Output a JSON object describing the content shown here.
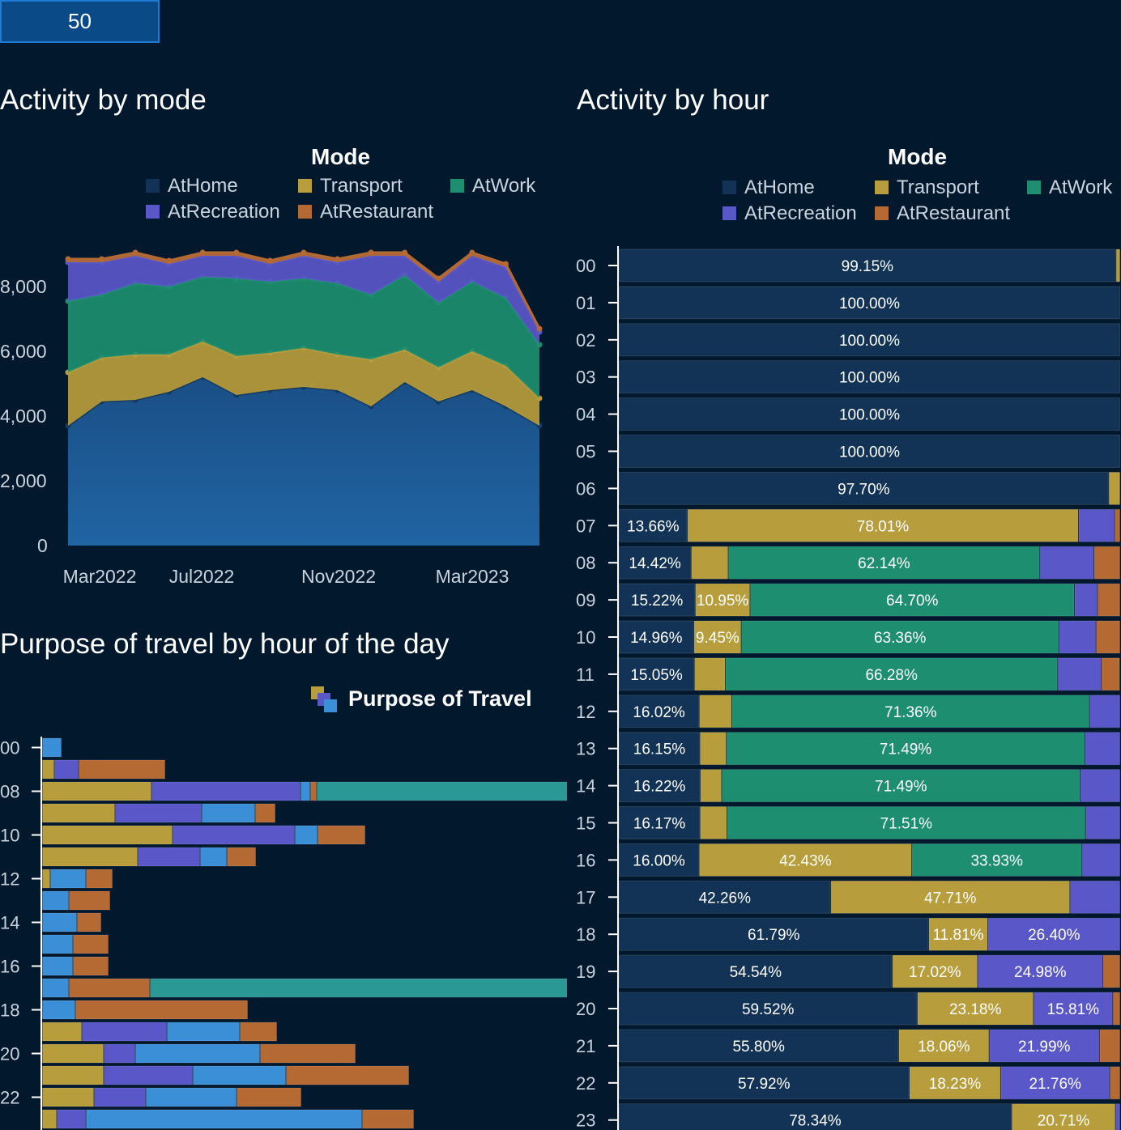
{
  "input": {
    "value": "50"
  },
  "colors": {
    "AtHome": "#123355",
    "Transport": "#b79d3c",
    "AtWork": "#1d8f70",
    "AtRecreation": "#5a57c9",
    "AtRestaurant": "#b56a34",
    "Blue": "#3a8fd6",
    "Teal": "#2a9894"
  },
  "mode_section": {
    "title": "Activity by mode",
    "legend_title": "Mode",
    "legend": [
      "AtHome",
      "Transport",
      "AtWork",
      "AtRecreation",
      "AtRestaurant"
    ]
  },
  "hour_section": {
    "title": "Activity by hour",
    "legend_title": "Mode",
    "legend": [
      "AtHome",
      "Transport",
      "AtWork",
      "AtRecreation",
      "AtRestaurant"
    ]
  },
  "purpose_section": {
    "title": "Purpose of travel by hour of the day",
    "legend_title": "Purpose of Travel"
  },
  "chart_data": [
    {
      "type": "area",
      "stacked": true,
      "title": "Activity by mode",
      "x_ticks": [
        "Mar2022",
        "Jul2022",
        "Nov2022",
        "Mar2023"
      ],
      "y_ticks": [
        "0",
        "2,000",
        "4,000",
        "6,000",
        "8,000"
      ],
      "ylim": [
        0,
        9000
      ],
      "series": [
        {
          "name": "AtHome",
          "values": [
            3700,
            4450,
            4500,
            4750,
            5200,
            4650,
            4800,
            4900,
            4800,
            4300,
            5050,
            4450,
            4800,
            4300,
            3700
          ]
        },
        {
          "name": "Transport",
          "values": [
            1650,
            1350,
            1400,
            1150,
            1100,
            1200,
            1150,
            1200,
            1100,
            1450,
            1000,
            1050,
            1200,
            1250,
            850
          ]
        },
        {
          "name": "AtWork",
          "values": [
            2200,
            1950,
            2200,
            2100,
            2000,
            2400,
            2200,
            2150,
            2200,
            2000,
            2300,
            2000,
            2150,
            2100,
            1650
          ]
        },
        {
          "name": "AtRecreation",
          "values": [
            1200,
            1000,
            850,
            700,
            650,
            700,
            550,
            700,
            650,
            1200,
            600,
            650,
            800,
            950,
            400
          ]
        },
        {
          "name": "AtRestaurant",
          "values": [
            100,
            100,
            100,
            100,
            100,
            100,
            100,
            100,
            100,
            100,
            100,
            100,
            100,
            100,
            100
          ]
        }
      ]
    },
    {
      "type": "bar",
      "stacked": true,
      "orientation": "horizontal",
      "title": "Activity by hour",
      "categories": [
        "00",
        "01",
        "02",
        "03",
        "04",
        "05",
        "06",
        "07",
        "08",
        "09",
        "10",
        "11",
        "12",
        "13",
        "14",
        "15",
        "16",
        "17",
        "18",
        "19",
        "20",
        "21",
        "22",
        "23"
      ],
      "series": [
        {
          "name": "AtHome",
          "values": [
            99.15,
            100,
            100,
            100,
            100,
            100,
            97.7,
            13.66,
            14.42,
            15.22,
            14.96,
            15.05,
            16.02,
            16.15,
            16.22,
            16.17,
            16.0,
            42.26,
            61.79,
            54.54,
            59.52,
            55.8,
            57.92,
            78.34
          ]
        },
        {
          "name": "Transport",
          "values": [
            0.85,
            0,
            0,
            0,
            0,
            0,
            2.3,
            78.01,
            7.4,
            10.95,
            9.45,
            6.2,
            6.5,
            5.3,
            4.3,
            5.4,
            42.43,
            47.71,
            11.81,
            17.02,
            23.18,
            18.06,
            18.23,
            20.71
          ]
        },
        {
          "name": "AtWork",
          "values": [
            0,
            0,
            0,
            0,
            0,
            0,
            0,
            0,
            62.14,
            64.7,
            63.36,
            66.28,
            71.36,
            71.49,
            71.49,
            71.51,
            33.93,
            0,
            0,
            0,
            0,
            0,
            0,
            0
          ]
        },
        {
          "name": "AtRecreation",
          "values": [
            0,
            0,
            0,
            0,
            0,
            0,
            0,
            7.2,
            10.8,
            4.6,
            7.4,
            8.7,
            6.12,
            7.06,
            7.99,
            6.92,
            7.64,
            10.03,
            26.4,
            24.98,
            15.81,
            21.99,
            21.76,
            0.95
          ]
        },
        {
          "name": "AtRestaurant",
          "values": [
            0,
            0,
            0,
            0,
            0,
            0,
            0,
            1.13,
            5.24,
            4.53,
            4.83,
            3.72,
            0,
            0,
            0,
            0,
            0,
            0,
            0,
            3.46,
            1.49,
            4.15,
            2.09,
            0
          ]
        }
      ],
      "labels": [
        [
          "99.15%"
        ],
        [
          "100.00%"
        ],
        [
          "100.00%"
        ],
        [
          "100.00%"
        ],
        [
          "100.00%"
        ],
        [
          "100.00%"
        ],
        [
          "97.70%"
        ],
        [
          "13.66%",
          "78.01%"
        ],
        [
          "14.42%",
          "62.14%"
        ],
        [
          "15.22%",
          "10.95%",
          "64.70%"
        ],
        [
          "14.96%",
          "9.45%",
          "63.36%"
        ],
        [
          "15.05%",
          "66.28%"
        ],
        [
          "16.02%",
          "71.36%"
        ],
        [
          "16.15%",
          "71.49%"
        ],
        [
          "16.22%",
          "71.49%"
        ],
        [
          "16.17%",
          "71.51%"
        ],
        [
          "16.00%",
          "42.43%",
          "33.93%"
        ],
        [
          "42.26%",
          "47.71%"
        ],
        [
          "61.79%",
          "11.81%",
          "26.40%"
        ],
        [
          "54.54%",
          "17.02%",
          "24.98%"
        ],
        [
          "59.52%",
          "23.18%",
          "15.81%"
        ],
        [
          "55.80%",
          "18.06%",
          "21.99%"
        ],
        [
          "57.92%",
          "18.23%",
          "21.76%"
        ],
        [
          "78.34%",
          "20.71%"
        ]
      ]
    },
    {
      "type": "bar",
      "stacked": true,
      "orientation": "horizontal",
      "title": "Purpose of travel by hour of the day",
      "y_ticks": [
        "00",
        "08",
        "10",
        "12",
        "14",
        "16",
        "18",
        "20",
        "22"
      ],
      "xlim": [
        0,
        1000
      ],
      "rows": [
        {
          "hour": "00",
          "segments": [
            {
              "c": "Blue",
              "v": 24
            }
          ]
        },
        {
          "hour": "07",
          "segments": [
            {
              "c": "Transport",
              "v": 15
            },
            {
              "c": "AtRecreation",
              "v": 30
            },
            {
              "c": "AtRestaurant",
              "v": 107
            }
          ]
        },
        {
          "hour": "08",
          "segments": [
            {
              "c": "Transport",
              "v": 135
            },
            {
              "c": "AtRecreation",
              "v": 184
            },
            {
              "c": "Blue",
              "v": 12
            },
            {
              "c": "AtRestaurant",
              "v": 8
            },
            {
              "c": "Teal",
              "v": 659
            }
          ]
        },
        {
          "hour": "09",
          "segments": [
            {
              "c": "Transport",
              "v": 90
            },
            {
              "c": "AtRecreation",
              "v": 107
            },
            {
              "c": "Blue",
              "v": 66
            },
            {
              "c": "AtRestaurant",
              "v": 25
            }
          ]
        },
        {
          "hour": "10",
          "segments": [
            {
              "c": "Transport",
              "v": 161
            },
            {
              "c": "AtRecreation",
              "v": 151
            },
            {
              "c": "Blue",
              "v": 28
            },
            {
              "c": "AtRestaurant",
              "v": 59
            }
          ]
        },
        {
          "hour": "11",
          "segments": [
            {
              "c": "Transport",
              "v": 118
            },
            {
              "c": "AtRecreation",
              "v": 77
            },
            {
              "c": "Blue",
              "v": 33
            },
            {
              "c": "AtRestaurant",
              "v": 36
            }
          ]
        },
        {
          "hour": "12",
          "segments": [
            {
              "c": "Transport",
              "v": 10
            },
            {
              "c": "Blue",
              "v": 44
            },
            {
              "c": "AtRestaurant",
              "v": 33
            }
          ]
        },
        {
          "hour": "13",
          "segments": [
            {
              "c": "Blue",
              "v": 33
            },
            {
              "c": "AtRestaurant",
              "v": 51
            }
          ]
        },
        {
          "hour": "14",
          "segments": [
            {
              "c": "Blue",
              "v": 43
            },
            {
              "c": "AtRestaurant",
              "v": 30
            }
          ]
        },
        {
          "hour": "15",
          "segments": [
            {
              "c": "Blue",
              "v": 38
            },
            {
              "c": "AtRestaurant",
              "v": 44
            }
          ]
        },
        {
          "hour": "16",
          "segments": [
            {
              "c": "Blue",
              "v": 38
            },
            {
              "c": "AtRestaurant",
              "v": 44
            }
          ]
        },
        {
          "hour": "17",
          "segments": [
            {
              "c": "Blue",
              "v": 33
            },
            {
              "c": "AtRestaurant",
              "v": 100
            },
            {
              "c": "Teal",
              "v": 656
            }
          ]
        },
        {
          "hour": "18",
          "segments": [
            {
              "c": "Blue",
              "v": 41
            },
            {
              "c": "AtRestaurant",
              "v": 213
            }
          ]
        },
        {
          "hour": "19",
          "segments": [
            {
              "c": "Transport",
              "v": 49
            },
            {
              "c": "AtRecreation",
              "v": 105
            },
            {
              "c": "Blue",
              "v": 90
            },
            {
              "c": "AtRestaurant",
              "v": 46
            }
          ]
        },
        {
          "hour": "20",
          "segments": [
            {
              "c": "Transport",
              "v": 76
            },
            {
              "c": "AtRecreation",
              "v": 39
            },
            {
              "c": "Blue",
              "v": 154
            },
            {
              "c": "AtRestaurant",
              "v": 118
            }
          ]
        },
        {
          "hour": "21",
          "segments": [
            {
              "c": "Transport",
              "v": 76
            },
            {
              "c": "AtRecreation",
              "v": 110
            },
            {
              "c": "Blue",
              "v": 115
            },
            {
              "c": "AtRestaurant",
              "v": 152
            }
          ]
        },
        {
          "hour": "22",
          "segments": [
            {
              "c": "Transport",
              "v": 64
            },
            {
              "c": "AtRecreation",
              "v": 64
            },
            {
              "c": "Blue",
              "v": 112
            },
            {
              "c": "AtRestaurant",
              "v": 80
            }
          ]
        },
        {
          "hour": "23",
          "segments": [
            {
              "c": "Transport",
              "v": 18
            },
            {
              "c": "AtRecreation",
              "v": 36
            },
            {
              "c": "Blue",
              "v": 341
            },
            {
              "c": "AtRestaurant",
              "v": 64
            }
          ]
        }
      ]
    }
  ]
}
